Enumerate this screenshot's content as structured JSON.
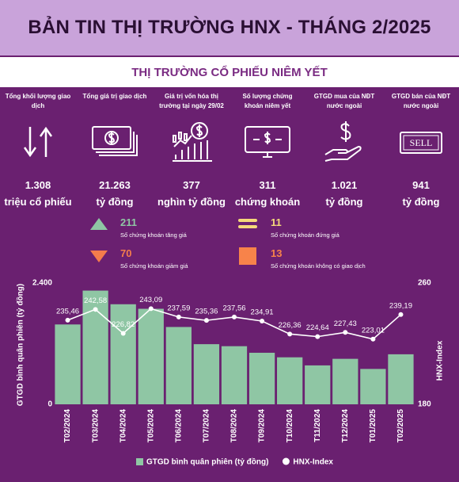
{
  "header": {
    "title": "BẢN TIN THỊ TRƯỜNG HNX - THÁNG 2/2025",
    "subtitle": "THỊ TRƯỜNG CỔ PHIẾU NIÊM YẾT"
  },
  "stats": [
    {
      "label": "Tổng khối lượng giao dịch",
      "value": "1.308",
      "unit": "triệu cổ phiếu"
    },
    {
      "label": "Tổng giá trị giao dịch",
      "value": "21.263",
      "unit": "tỷ đồng"
    },
    {
      "label": "Giá trị vốn hóa thị trường tại ngày 29/02",
      "value": "377",
      "unit": "nghìn tỷ đồng"
    },
    {
      "label": "Số lượng chứng khoán niêm yết",
      "value": "311",
      "unit": "chứng khoán"
    },
    {
      "label": "GTGD mua của NĐT nước ngoài",
      "value": "1.021",
      "unit": "tỷ đồng"
    },
    {
      "label": "GTGD bán của NĐT nước ngoài",
      "value": "941",
      "unit": "tỷ đồng",
      "icon_text": "SELL"
    }
  ],
  "counts": [
    {
      "value": 211,
      "label": "Số chứng khoán tăng giá"
    },
    {
      "value": 70,
      "label": "Số chứng khoán giảm giá"
    },
    {
      "value": 11,
      "label": "Số chứng khoán đứng giá"
    },
    {
      "value": 13,
      "label": "Số chứng khoán không có giao dịch"
    }
  ],
  "chart_data": {
    "type": "bar",
    "categories": [
      "T02/2024",
      "T03/2024",
      "T04/2024",
      "T05/2024",
      "T06/2024",
      "T07/2024",
      "T08/2024",
      "T09/2024",
      "T10/2024",
      "T11/2024",
      "T12/2024",
      "T01/2025",
      "T02/2025"
    ],
    "series": [
      {
        "name": "GTGD bình quân phiên (tỷ đồng)",
        "type": "bar",
        "color": "#8fc6a4",
        "values": [
          1580,
          2250,
          1980,
          1890,
          1530,
          1190,
          1150,
          1020,
          930,
          770,
          900,
          700,
          990
        ]
      },
      {
        "name": "HNX-Index",
        "type": "line",
        "axis": "y2",
        "color": "#ffffff",
        "values": [
          235.46,
          242.58,
          226.82,
          243.09,
          237.59,
          235.36,
          237.56,
          234.91,
          226.36,
          224.64,
          227.43,
          223.01,
          239.19
        ],
        "value_labels": [
          "235,46",
          "242,58",
          "226,82",
          "243,09",
          "237,59",
          "235,36",
          "237,56",
          "234,91",
          "226,36",
          "224,64",
          "227,43",
          "223,01",
          "239,19"
        ]
      }
    ],
    "ylabel": "GTGD bình quân phiên (tỷ đồng)",
    "y2label": "HNX-Index",
    "ylim": [
      0,
      2400
    ],
    "yticks": [
      0,
      {
        "value": 2400,
        "label": "2.400"
      }
    ],
    "y2lim": [
      180,
      260
    ],
    "y2ticks": [
      180,
      260
    ]
  }
}
